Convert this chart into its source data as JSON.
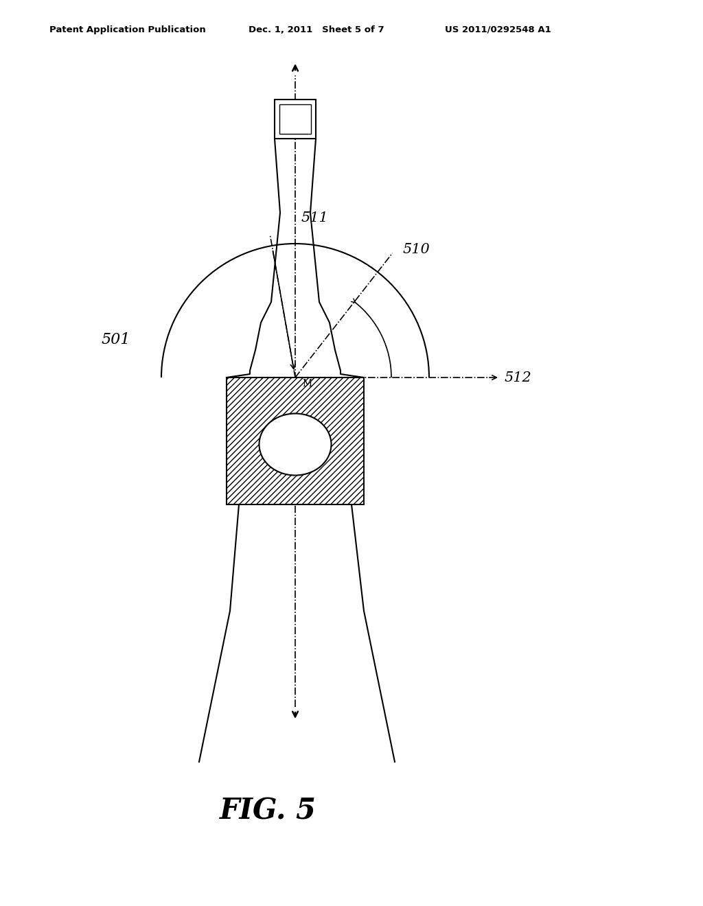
{
  "background_color": "#ffffff",
  "header_left": "Patent Application Publication",
  "header_mid": "Dec. 1, 2011   Sheet 5 of 7",
  "header_right": "US 2011/0292548 A1",
  "figure_label": "FIG. 5",
  "label_501": "501",
  "label_510": "510",
  "label_511": "511",
  "label_512": "512"
}
